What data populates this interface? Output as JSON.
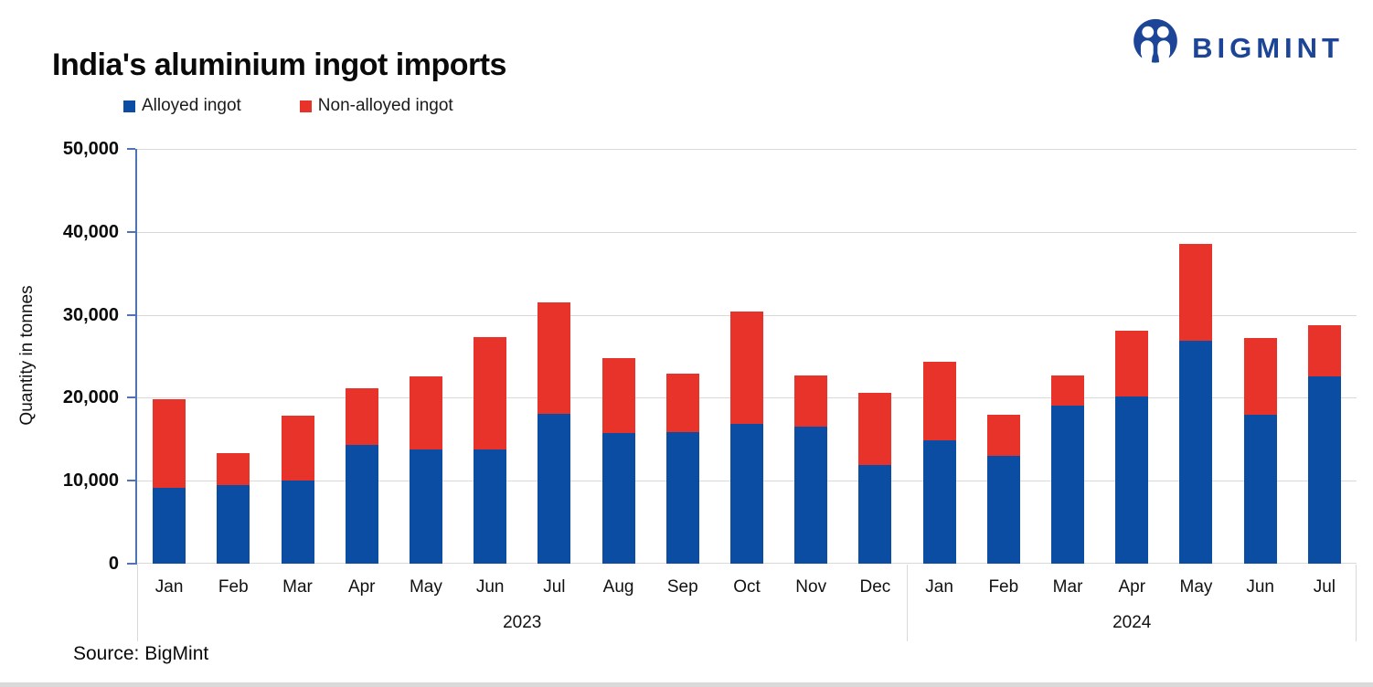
{
  "header": {
    "title": "India's aluminium ingot imports"
  },
  "brand": {
    "name": "BIGMINT",
    "color": "#1c4497"
  },
  "footer": {
    "source": "Source: BigMint"
  },
  "chart_data": {
    "type": "bar",
    "stacked": true,
    "title": "India's aluminium ingot imports",
    "ylabel": "Quantity in tonnes",
    "ylim": [
      0,
      50000
    ],
    "ytick_step": 10000,
    "ytick_labels": [
      "0",
      "10,000",
      "20,000",
      "30,000",
      "40,000",
      "50,000"
    ],
    "grid": true,
    "legend_position": "top-left",
    "categories": [
      "Jan",
      "Feb",
      "Mar",
      "Apr",
      "May",
      "Jun",
      "Jul",
      "Aug",
      "Sep",
      "Oct",
      "Nov",
      "Dec",
      "Jan",
      "Feb",
      "Mar",
      "Apr",
      "May",
      "Jun",
      "Jul"
    ],
    "groups": [
      {
        "year": "2023",
        "months": 12
      },
      {
        "year": "2024",
        "months": 7
      }
    ],
    "series": [
      {
        "name": "Alloyed ingot",
        "color": "#0b4da2",
        "values": [
          9100,
          9500,
          10000,
          14300,
          13800,
          13800,
          18100,
          15700,
          15900,
          16900,
          16500,
          11900,
          14900,
          13000,
          19000,
          20200,
          26900,
          18000,
          22600
        ]
      },
      {
        "name": "Non-alloyed ingot",
        "color": "#e8332a",
        "values": [
          10700,
          3800,
          7800,
          6800,
          8800,
          13500,
          13400,
          9100,
          7000,
          13500,
          6200,
          8700,
          9400,
          4900,
          3700,
          7900,
          11700,
          9200,
          6100
        ]
      }
    ]
  }
}
